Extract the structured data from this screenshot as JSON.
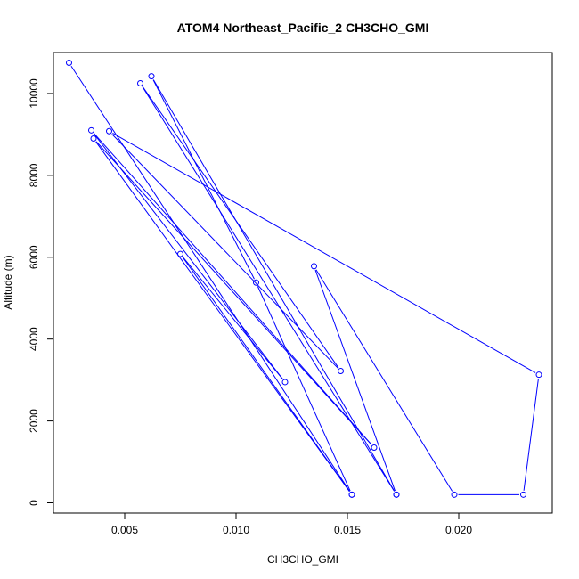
{
  "chart_data": {
    "type": "line",
    "title": "ATOM4 Northeast_Pacific_2 CH3CHO_GMI",
    "xlabel": "CH3CHO_GMI",
    "ylabel": "Altitude (m)",
    "xlim": [
      0.0018,
      0.0242
    ],
    "ylim": [
      -250,
      11000
    ],
    "xticks": [
      0.005,
      0.01,
      0.015,
      0.02
    ],
    "xtick_labels": [
      "0.005",
      "0.010",
      "0.015",
      "0.020"
    ],
    "yticks": [
      0,
      2000,
      4000,
      6000,
      8000,
      10000
    ],
    "ytick_labels": [
      "0",
      "2000",
      "4000",
      "6000",
      "8000",
      "10000"
    ],
    "grid": false,
    "color": "#0000ff",
    "series": [
      {
        "x": [
          0.0025,
          0.0152,
          0.0036,
          0.0162,
          0.0035,
          0.0122,
          0.0075,
          0.0152,
          0.0109,
          0.0062,
          0.0172,
          0.0057,
          0.0147,
          0.0043,
          0.0236,
          0.0229,
          0.0198,
          0.0135,
          0.0172
        ],
        "y": [
          10750,
          200,
          8900,
          1350,
          9100,
          2950,
          6080,
          200,
          5380,
          10420,
          200,
          10250,
          3220,
          9080,
          3130,
          200,
          200,
          5780,
          200
        ]
      }
    ]
  }
}
